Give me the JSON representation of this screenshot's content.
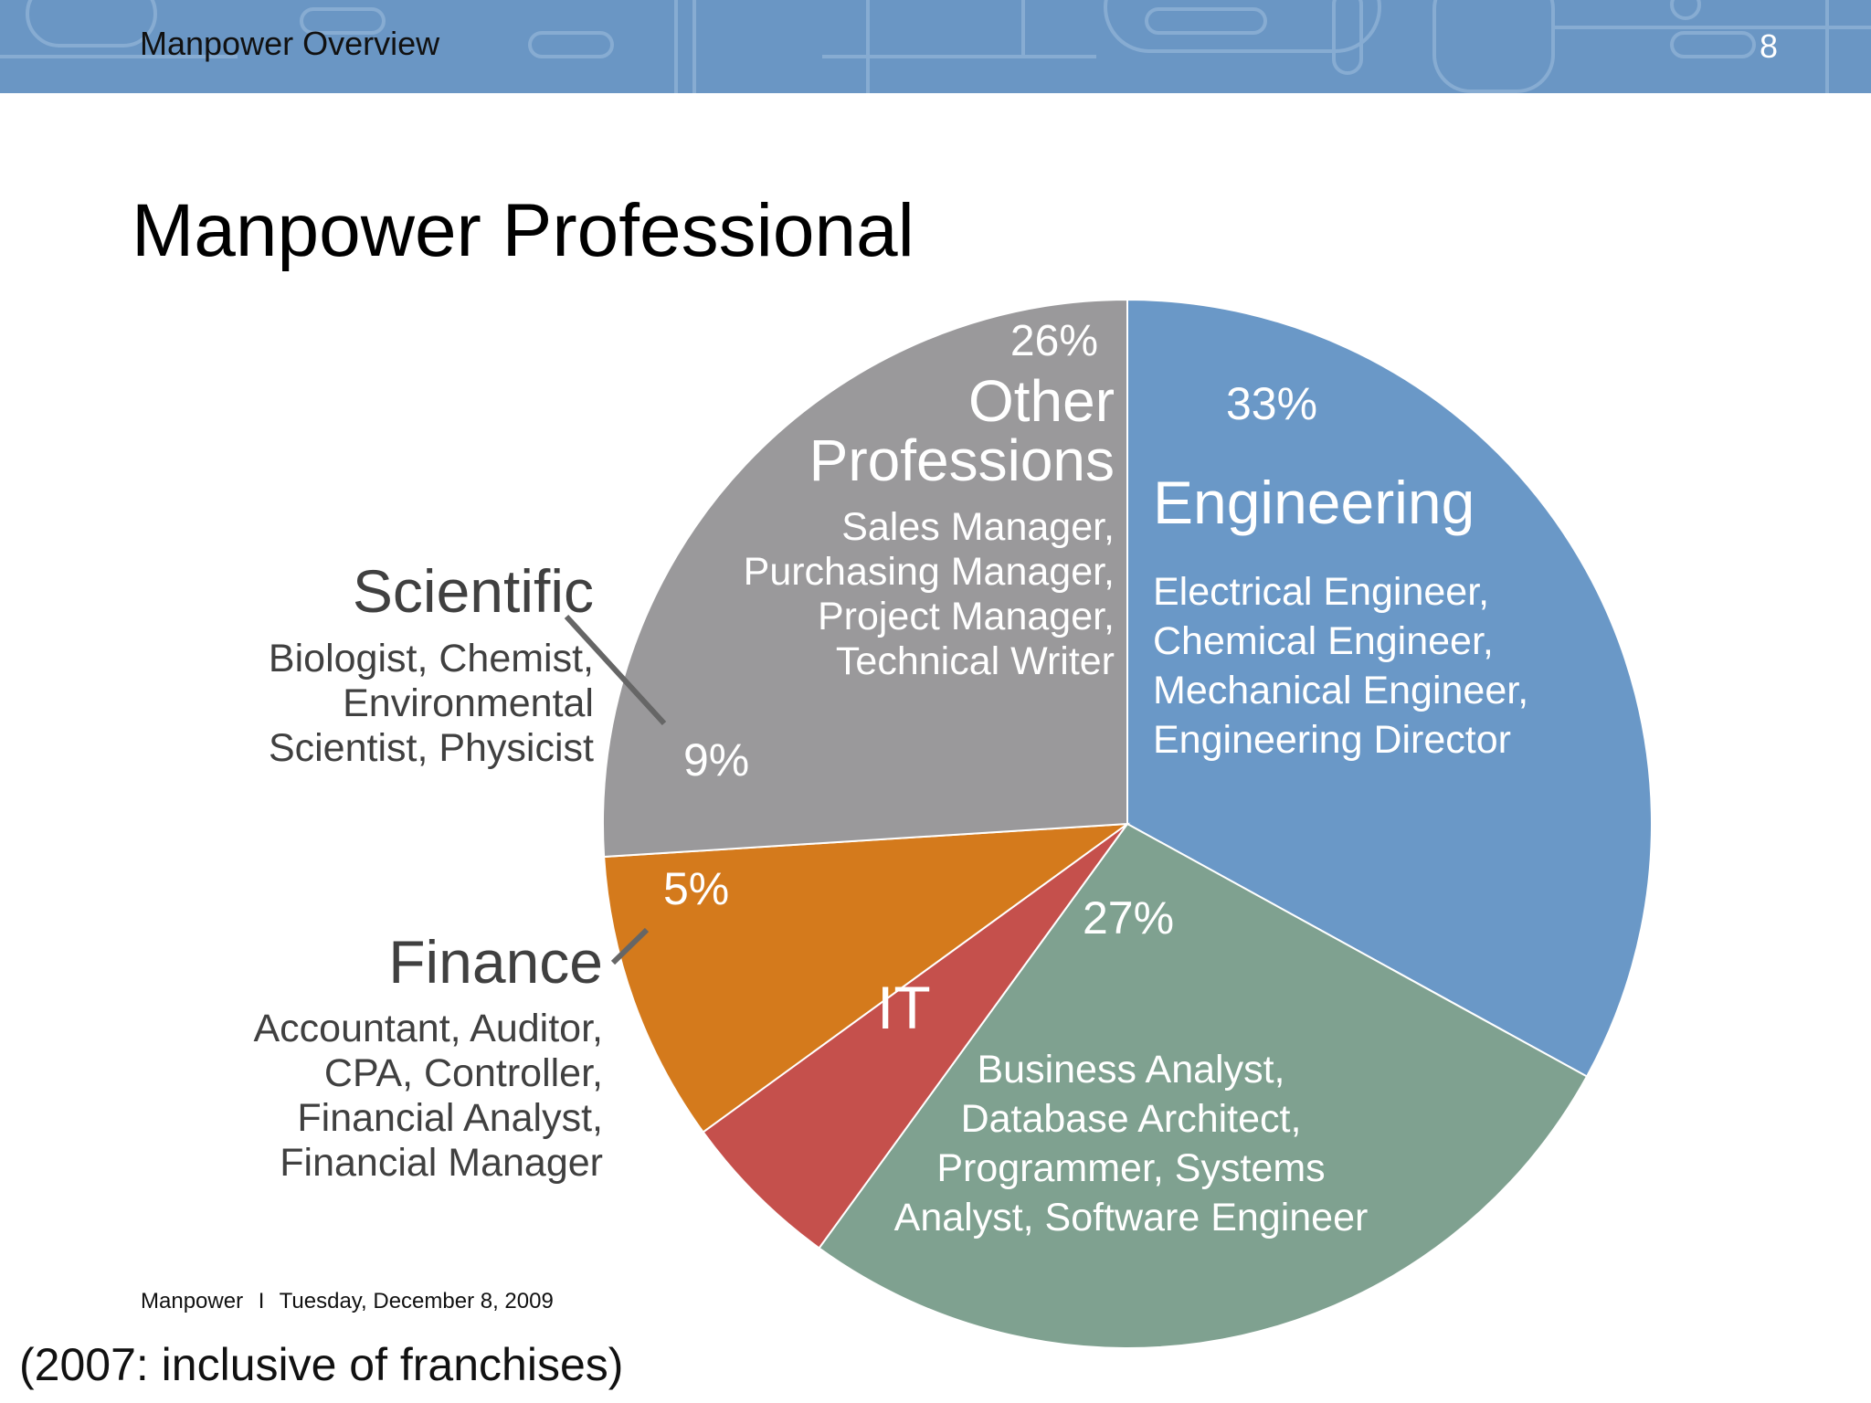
{
  "header": {
    "title": "Manpower Overview",
    "page_number": "8",
    "background_color": "#6a96c4"
  },
  "slide": {
    "title": "Manpower Professional"
  },
  "chart_data": {
    "type": "pie",
    "title": "",
    "unit": "%",
    "slices": [
      {
        "name": "Engineering",
        "value": 33,
        "label": "33%",
        "color": "#6a98c7",
        "roles": [
          "Electrical Engineer,",
          "Chemical Engineer,",
          "Mechanical Engineer,",
          "Engineering Director"
        ]
      },
      {
        "name": "IT",
        "value": 27,
        "label": "27%",
        "color": "#7fa190",
        "roles": [
          "Business Analyst,",
          "Database Architect,",
          "Programmer, Systems",
          "Analyst, Software Engineer"
        ]
      },
      {
        "name": "Finance",
        "value": 5,
        "label": "5%",
        "color": "#c5504c",
        "roles": [
          "Accountant, Auditor,",
          "CPA, Controller,",
          "Financial Analyst,",
          "Financial Manager"
        ]
      },
      {
        "name": "Scientific",
        "value": 9,
        "label": "9%",
        "color": "#d47a1c",
        "roles": [
          "Biologist, Chemist,",
          "Environmental",
          "Scientist, Physicist"
        ]
      },
      {
        "name": "Other Professions",
        "name_lines": [
          "Other",
          "Professions"
        ],
        "value": 26,
        "label": "26%",
        "color": "#9a999b",
        "roles": [
          "Sales Manager,",
          "Purchasing Manager,",
          "Project Manager,",
          "Technical Writer"
        ]
      }
    ],
    "legend": "none (direct labels)"
  },
  "footer": {
    "company": "Manpower",
    "separator": "I",
    "date": "Tuesday, December 8, 2009"
  },
  "note": "(2007: inclusive of franchises)"
}
